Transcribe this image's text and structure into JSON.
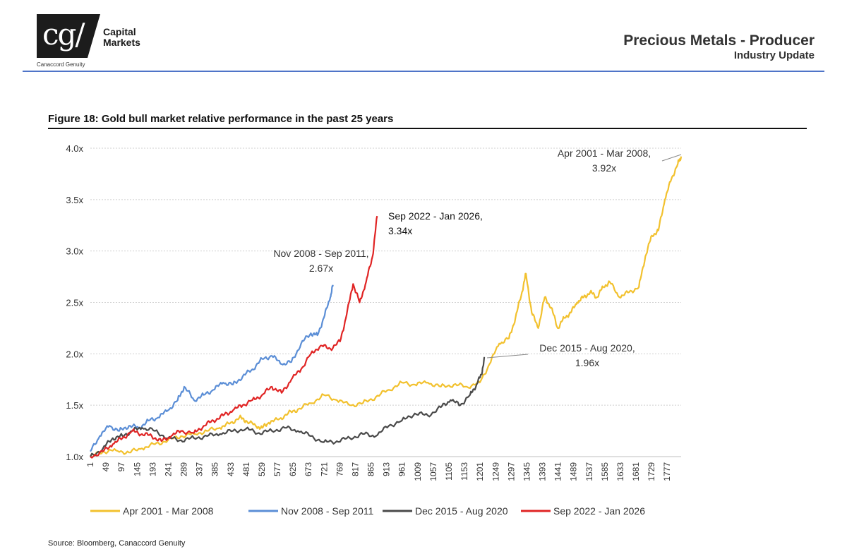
{
  "header": {
    "logo_mark": "cg/",
    "logo_name": "Capital Markets",
    "logo_sub": "Canaccord Genuity",
    "title": "Precious Metals - Producer",
    "subtitle": "Industry Update"
  },
  "figure": {
    "title": "Figure 18: Gold bull market relative performance in the past 25 years",
    "source": "Source: Bloomberg, Canaccord Genuity"
  },
  "chart_data": {
    "type": "line",
    "title": "Figure 18: Gold bull market relative performance in the past 25 years",
    "xlabel": "",
    "ylabel": "",
    "xlim": [
      1,
      1820
    ],
    "ylim": [
      1.0,
      4.0
    ],
    "y_ticks": [
      "1.0x",
      "1.5x",
      "2.0x",
      "2.5x",
      "3.0x",
      "3.5x",
      "4.0x"
    ],
    "y_tick_values": [
      1.0,
      1.5,
      2.0,
      2.5,
      3.0,
      3.5,
      4.0
    ],
    "x_ticks": [
      1,
      49,
      97,
      145,
      193,
      241,
      289,
      337,
      385,
      433,
      481,
      529,
      577,
      625,
      673,
      721,
      769,
      817,
      865,
      913,
      961,
      1009,
      1057,
      1105,
      1153,
      1201,
      1249,
      1297,
      1345,
      1393,
      1441,
      1489,
      1537,
      1585,
      1633,
      1681,
      1729,
      1777
    ],
    "grid": "horizontal-dotted",
    "legend_position": "bottom",
    "series": [
      {
        "name": "Apr 2001 - Mar 2008",
        "color": "#f2c12e",
        "points": [
          [
            1,
            1.0
          ],
          [
            40,
            1.05
          ],
          [
            80,
            1.06
          ],
          [
            120,
            1.04
          ],
          [
            160,
            1.08
          ],
          [
            200,
            1.12
          ],
          [
            240,
            1.16
          ],
          [
            280,
            1.2
          ],
          [
            320,
            1.22
          ],
          [
            360,
            1.25
          ],
          [
            400,
            1.28
          ],
          [
            430,
            1.32
          ],
          [
            460,
            1.38
          ],
          [
            480,
            1.35
          ],
          [
            510,
            1.3
          ],
          [
            530,
            1.28
          ],
          [
            550,
            1.33
          ],
          [
            580,
            1.36
          ],
          [
            610,
            1.42
          ],
          [
            640,
            1.46
          ],
          [
            680,
            1.52
          ],
          [
            720,
            1.6
          ],
          [
            760,
            1.55
          ],
          [
            800,
            1.5
          ],
          [
            840,
            1.52
          ],
          [
            880,
            1.58
          ],
          [
            920,
            1.65
          ],
          [
            960,
            1.72
          ],
          [
            1000,
            1.7
          ],
          [
            1040,
            1.72
          ],
          [
            1080,
            1.68
          ],
          [
            1120,
            1.7
          ],
          [
            1160,
            1.68
          ],
          [
            1200,
            1.72
          ],
          [
            1230,
            1.9
          ],
          [
            1260,
            2.1
          ],
          [
            1290,
            2.15
          ],
          [
            1310,
            2.35
          ],
          [
            1330,
            2.6
          ],
          [
            1342,
            2.78
          ],
          [
            1360,
            2.4
          ],
          [
            1380,
            2.25
          ],
          [
            1400,
            2.55
          ],
          [
            1420,
            2.45
          ],
          [
            1440,
            2.25
          ],
          [
            1460,
            2.35
          ],
          [
            1480,
            2.4
          ],
          [
            1500,
            2.5
          ],
          [
            1520,
            2.55
          ],
          [
            1540,
            2.6
          ],
          [
            1560,
            2.55
          ],
          [
            1580,
            2.65
          ],
          [
            1600,
            2.7
          ],
          [
            1630,
            2.55
          ],
          [
            1660,
            2.6
          ],
          [
            1690,
            2.65
          ],
          [
            1710,
            2.95
          ],
          [
            1730,
            3.15
          ],
          [
            1750,
            3.2
          ],
          [
            1770,
            3.5
          ],
          [
            1790,
            3.7
          ],
          [
            1810,
            3.85
          ],
          [
            1820,
            3.92
          ]
        ]
      },
      {
        "name": "Nov 2008 - Sep 2011",
        "color": "#5b8ed6",
        "points": [
          [
            1,
            1.05
          ],
          [
            30,
            1.2
          ],
          [
            60,
            1.3
          ],
          [
            90,
            1.25
          ],
          [
            120,
            1.3
          ],
          [
            150,
            1.28
          ],
          [
            180,
            1.35
          ],
          [
            210,
            1.38
          ],
          [
            240,
            1.45
          ],
          [
            270,
            1.55
          ],
          [
            290,
            1.68
          ],
          [
            320,
            1.55
          ],
          [
            350,
            1.6
          ],
          [
            380,
            1.65
          ],
          [
            410,
            1.72
          ],
          [
            440,
            1.7
          ],
          [
            470,
            1.78
          ],
          [
            500,
            1.85
          ],
          [
            530,
            1.95
          ],
          [
            560,
            1.98
          ],
          [
            590,
            1.9
          ],
          [
            620,
            1.92
          ],
          [
            650,
            2.1
          ],
          [
            680,
            2.2
          ],
          [
            700,
            2.18
          ],
          [
            720,
            2.35
          ],
          [
            740,
            2.55
          ],
          [
            748,
            2.67
          ]
        ]
      },
      {
        "name": "Dec 2015 - Aug 2020",
        "color": "#4a4a4a",
        "points": [
          [
            1,
            1.0
          ],
          [
            40,
            1.08
          ],
          [
            70,
            1.18
          ],
          [
            100,
            1.2
          ],
          [
            130,
            1.25
          ],
          [
            160,
            1.28
          ],
          [
            200,
            1.25
          ],
          [
            240,
            1.18
          ],
          [
            280,
            1.16
          ],
          [
            320,
            1.18
          ],
          [
            360,
            1.2
          ],
          [
            400,
            1.22
          ],
          [
            440,
            1.25
          ],
          [
            480,
            1.27
          ],
          [
            520,
            1.23
          ],
          [
            560,
            1.25
          ],
          [
            600,
            1.28
          ],
          [
            640,
            1.25
          ],
          [
            680,
            1.2
          ],
          [
            720,
            1.14
          ],
          [
            760,
            1.15
          ],
          [
            800,
            1.18
          ],
          [
            840,
            1.22
          ],
          [
            880,
            1.2
          ],
          [
            920,
            1.3
          ],
          [
            960,
            1.35
          ],
          [
            1000,
            1.42
          ],
          [
            1040,
            1.4
          ],
          [
            1080,
            1.48
          ],
          [
            1110,
            1.55
          ],
          [
            1140,
            1.5
          ],
          [
            1170,
            1.6
          ],
          [
            1190,
            1.7
          ],
          [
            1205,
            1.8
          ],
          [
            1215,
            1.96
          ]
        ]
      },
      {
        "name": "Sep 2022 - Jan 2026",
        "color": "#e02424",
        "points": [
          [
            1,
            1.0
          ],
          [
            40,
            1.05
          ],
          [
            70,
            1.12
          ],
          [
            100,
            1.18
          ],
          [
            130,
            1.25
          ],
          [
            160,
            1.22
          ],
          [
            190,
            1.2
          ],
          [
            220,
            1.15
          ],
          [
            250,
            1.2
          ],
          [
            280,
            1.25
          ],
          [
            320,
            1.23
          ],
          [
            350,
            1.3
          ],
          [
            380,
            1.35
          ],
          [
            410,
            1.4
          ],
          [
            440,
            1.45
          ],
          [
            470,
            1.5
          ],
          [
            500,
            1.55
          ],
          [
            530,
            1.6
          ],
          [
            560,
            1.68
          ],
          [
            590,
            1.62
          ],
          [
            620,
            1.75
          ],
          [
            650,
            1.85
          ],
          [
            680,
            2.0
          ],
          [
            710,
            2.08
          ],
          [
            740,
            2.05
          ],
          [
            770,
            2.12
          ],
          [
            790,
            2.38
          ],
          [
            810,
            2.68
          ],
          [
            830,
            2.5
          ],
          [
            850,
            2.7
          ],
          [
            870,
            2.95
          ],
          [
            884,
            3.34
          ]
        ]
      }
    ],
    "annotations": [
      {
        "text": [
          "Apr 2001 - Mar 2008,",
          "3.92x"
        ],
        "series": "Apr 2001 - Mar 2008"
      },
      {
        "text": [
          "Sep 2022 - Jan 2026,",
          "3.34x"
        ],
        "series": "Sep 2022 - Jan 2026"
      },
      {
        "text": [
          "Nov 2008 - Sep 2011,",
          "2.67x"
        ],
        "series": "Nov 2008 - Sep 2011"
      },
      {
        "text": [
          "Dec 2015 - Aug 2020,",
          "1.96x"
        ],
        "series": "Dec 2015 - Aug 2020"
      }
    ]
  }
}
